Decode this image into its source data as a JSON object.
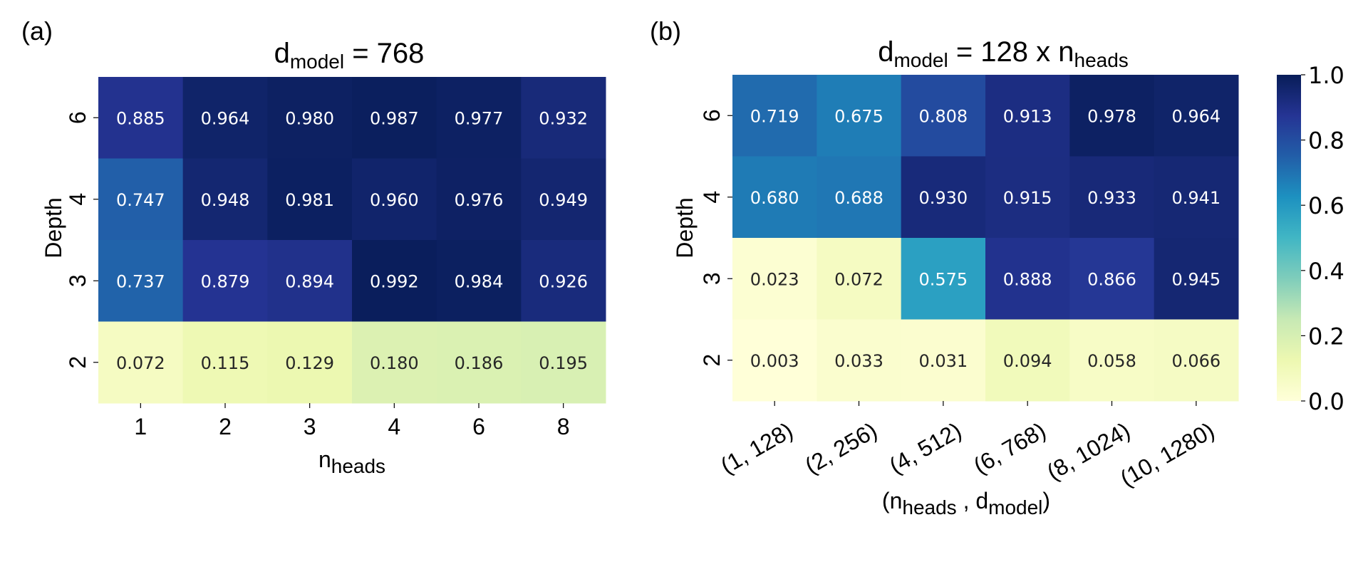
{
  "chart_data": [
    {
      "type": "heatmap",
      "panel_label": "(a)",
      "title": {
        "main": "d",
        "sub": "model",
        "rest": " = 768"
      },
      "xlabel": {
        "main": "n",
        "sub": "heads"
      },
      "ylabel": "Depth",
      "x_categories": [
        "1",
        "2",
        "3",
        "4",
        "6",
        "8"
      ],
      "y_categories": [
        "6",
        "4",
        "3",
        "2"
      ],
      "values": [
        [
          0.885,
          0.964,
          0.98,
          0.987,
          0.977,
          0.932
        ],
        [
          0.747,
          0.948,
          0.981,
          0.96,
          0.976,
          0.949
        ],
        [
          0.737,
          0.879,
          0.894,
          0.992,
          0.984,
          0.926
        ],
        [
          0.072,
          0.115,
          0.129,
          0.18,
          0.186,
          0.195
        ]
      ],
      "value_format": "3 decimals",
      "colormap": "YlGnBu",
      "vmin": 0.0,
      "vmax": 1.0
    },
    {
      "type": "heatmap",
      "panel_label": "(b)",
      "title": {
        "main": "d",
        "sub": "model",
        "rest": " = 128 x n",
        "sub2": "heads"
      },
      "xlabel": {
        "open": "(n",
        "sub1": "heads",
        "mid": " , d",
        "sub2": "model",
        "close": ")"
      },
      "ylabel": "Depth",
      "x_categories": [
        "(1, 128)",
        "(2, 256)",
        "(4, 512)",
        "(6, 768)",
        "(8, 1024)",
        "(10, 1280)"
      ],
      "y_categories": [
        "6",
        "4",
        "3",
        "2"
      ],
      "values": [
        [
          0.719,
          0.675,
          0.808,
          0.913,
          0.978,
          0.964
        ],
        [
          0.68,
          0.688,
          0.93,
          0.915,
          0.933,
          0.941
        ],
        [
          0.023,
          0.072,
          0.575,
          0.888,
          0.866,
          0.945
        ],
        [
          0.003,
          0.033,
          0.031,
          0.094,
          0.058,
          0.066
        ]
      ],
      "value_format": "3 decimals",
      "colormap": "YlGnBu",
      "vmin": 0.0,
      "vmax": 1.0
    }
  ],
  "colorbar": {
    "ticks": [
      "0.0",
      "0.2",
      "0.4",
      "0.6",
      "0.8",
      "1.0"
    ],
    "tick_values": [
      0.0,
      0.2,
      0.4,
      0.6,
      0.8,
      1.0
    ],
    "colormap_stops": [
      "#ffffd9",
      "#edf8b1",
      "#c7e9b4",
      "#7fcdbb",
      "#41b6c4",
      "#1d91c0",
      "#225ea8",
      "#253494",
      "#081d58"
    ]
  }
}
